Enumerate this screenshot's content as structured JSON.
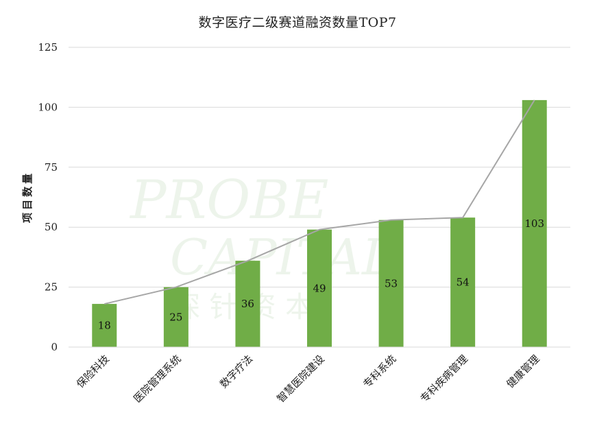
{
  "chart_data": {
    "type": "bar",
    "title": "数字医疗二级赛道融资数量TOP7",
    "xlabel": "",
    "ylabel": "项目数量",
    "ylim": [
      0,
      125
    ],
    "yticks": [
      0,
      25,
      50,
      75,
      100,
      125
    ],
    "categories": [
      "保险科技",
      "医院管理系统",
      "数字疗法",
      "智慧医院建设",
      "专科系统",
      "专科疾病管理",
      "健康管理"
    ],
    "series": [
      {
        "values": [
          18,
          25,
          36,
          49,
          53,
          54,
          103
        ]
      }
    ],
    "overlay_line": true,
    "grid": true,
    "legend": "none",
    "colors": {
      "bar": "#70ad47",
      "line": "#a6a6a6",
      "grid": "#d9d9d9"
    }
  },
  "watermark": {
    "line1": "PROBE",
    "line2": "CAPITAL",
    "line3": "探 针 资 本"
  }
}
